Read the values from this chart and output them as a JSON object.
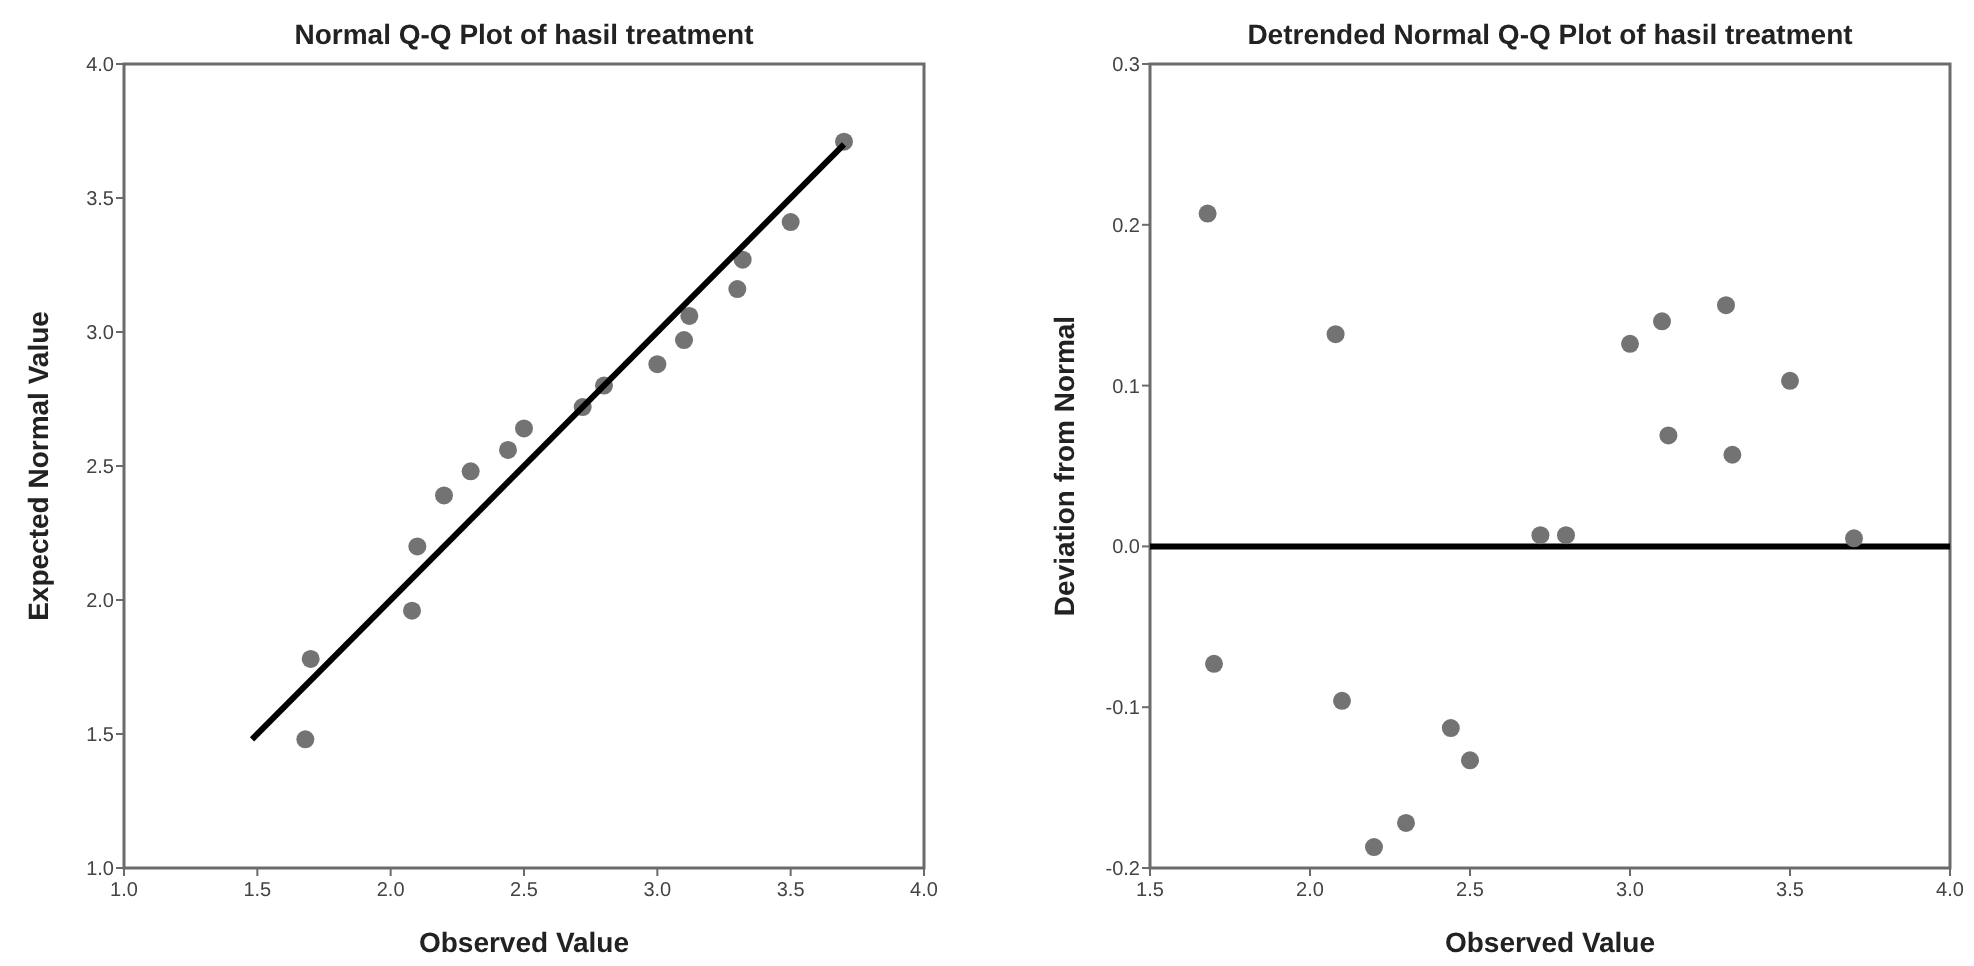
{
  "chart_data": [
    {
      "type": "scatter",
      "title": "Normal Q-Q Plot of hasil treatment",
      "xlabel": "Observed Value",
      "ylabel": "Expected Normal Value",
      "xlim": [
        1.0,
        4.0
      ],
      "xticks": [
        {
          "value": 1,
          "label": "1.0"
        },
        1.5,
        {
          "value": 2,
          "label": "2.0"
        },
        2.5,
        {
          "value": 3,
          "label": "3.0"
        },
        3.5,
        {
          "value": 4,
          "label": "4.0"
        }
      ],
      "ylim": [
        1.0,
        4.0
      ],
      "yticks": [
        {
          "value": 1,
          "label": "1.0"
        },
        1.5,
        {
          "value": 2,
          "label": "2.0"
        },
        2.5,
        {
          "value": 3,
          "label": "3.0"
        },
        3.5,
        {
          "value": 4,
          "label": "4.0"
        }
      ],
      "grid": false,
      "series": [
        {
          "marker": "circle",
          "color": "#737373",
          "x": [
            1.68,
            1.7,
            2.08,
            2.1,
            2.2,
            2.3,
            2.44,
            2.5,
            2.72,
            2.8,
            3.0,
            3.1,
            3.12,
            3.3,
            3.32,
            3.5,
            3.7
          ],
          "values": [
            1.48,
            1.78,
            1.96,
            2.2,
            2.39,
            2.48,
            2.56,
            2.64,
            2.72,
            2.8,
            2.88,
            2.97,
            3.06,
            3.16,
            3.27,
            3.41,
            3.71
          ]
        },
        {
          "type": "line",
          "color": "#000000",
          "line_style": "solid",
          "x": [
            1.48,
            3.7
          ],
          "values": [
            1.48,
            3.7
          ]
        }
      ]
    },
    {
      "type": "scatter",
      "title": "Detrended Normal Q-Q Plot of hasil treatment",
      "xlabel": "Observed Value",
      "ylabel": "Deviation from Normal",
      "xlim": [
        1.5,
        4.0
      ],
      "xticks": [
        1.5,
        {
          "value": 2,
          "label": "2.0"
        },
        2.5,
        {
          "value": 3,
          "label": "3.0"
        },
        3.5,
        {
          "value": 4,
          "label": "4.0"
        }
      ],
      "ylim": [
        -0.2,
        0.3
      ],
      "yticks": [
        -0.2,
        -0.1,
        {
          "value": 0,
          "label": "0.0"
        },
        0.1,
        0.2,
        0.3
      ],
      "grid": false,
      "ref_lines": [
        {
          "axis": "y",
          "value": 0,
          "color": "#000000"
        }
      ],
      "series": [
        {
          "marker": "circle",
          "color": "#737373",
          "x": [
            1.68,
            1.7,
            2.08,
            2.1,
            2.2,
            2.3,
            2.44,
            2.5,
            2.72,
            2.8,
            3.0,
            3.1,
            3.12,
            3.3,
            3.32,
            3.5,
            3.7
          ],
          "values": [
            0.207,
            -0.073,
            0.132,
            -0.096,
            -0.187,
            -0.172,
            -0.113,
            -0.133,
            0.007,
            0.007,
            0.126,
            0.14,
            0.069,
            0.15,
            0.057,
            0.103,
            0.005
          ]
        }
      ]
    }
  ]
}
